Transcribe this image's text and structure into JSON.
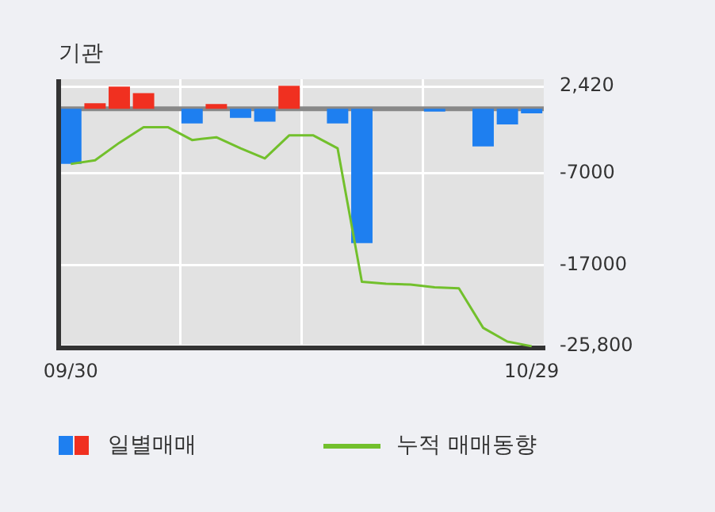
{
  "chart_data": {
    "type": "bar",
    "title": "기관",
    "categories": [
      "09/30",
      null,
      null,
      null,
      null,
      null,
      null,
      null,
      null,
      null,
      null,
      null,
      null,
      null,
      null,
      null,
      null,
      null,
      null,
      "10/29"
    ],
    "series": [
      {
        "name": "일별매매",
        "colors": [
          "#1e7ff0",
          "#f03020",
          "#f03020",
          "#f03020",
          "#1e7ff0",
          "#1e7ff0",
          "#f03020",
          "#1e7ff0",
          "#1e7ff0",
          "#f03020",
          "#1e7ff0",
          "#1e7ff0",
          "#1e7ff0",
          "#1e7ff0",
          "#1e7ff0",
          "#1e7ff0",
          "#1e7ff0",
          "#1e7ff0",
          "#1e7ff0",
          "#1e7ff0"
        ],
        "values": [
          -6000,
          600,
          2400,
          1700,
          0,
          -1600,
          500,
          -1000,
          -1400,
          2500,
          0,
          -1600,
          -14600,
          0,
          0,
          -300,
          0,
          -4100,
          -1700,
          -500
        ]
      },
      {
        "name": "누적 매매동향",
        "type": "line",
        "color": "#72c02c",
        "values": [
          -6000,
          -5600,
          -3700,
          -2000,
          -2000,
          -3400,
          -3100,
          -4300,
          -5400,
          -2900,
          -2900,
          -4300,
          -18800,
          -19000,
          -19100,
          -19400,
          -19500,
          -23800,
          -25300,
          -25800
        ]
      }
    ],
    "ylim": [
      -26000,
      3200
    ],
    "yticks": [
      {
        "value": 2420,
        "label": "2,420"
      },
      -7000,
      -17000,
      {
        "value": -25800,
        "label": "-25,800"
      }
    ],
    "ref_lines": [
      {
        "axis": "y",
        "value": 0,
        "color": "#888888"
      }
    ],
    "grid": true,
    "legend": "bottom",
    "marker": "none",
    "line_style": "solid"
  }
}
